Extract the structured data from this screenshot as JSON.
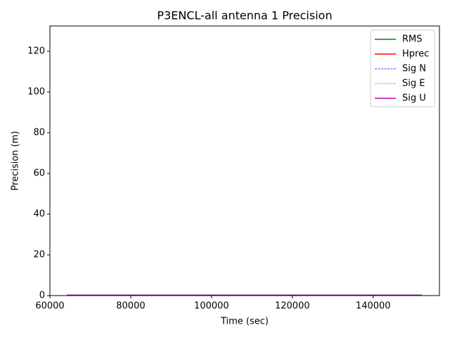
{
  "chart_data": {
    "type": "line",
    "title": "P3ENCL-all antenna 1 Precision",
    "x_label": "Time (sec)",
    "y_label": "Precision (m)",
    "x": [
      64200,
      152000
    ],
    "series": [
      {
        "name": "RMS",
        "color": "#008000",
        "linestyle": "solid",
        "values": [
          0.2,
          0.2
        ]
      },
      {
        "name": "Hprec",
        "color": "#ff0000",
        "linestyle": "solid",
        "values": [
          0.1,
          0.1
        ]
      },
      {
        "name": "Sig N",
        "color": "#0000ff",
        "linestyle": "dashed",
        "values": [
          0.05,
          0.05
        ]
      },
      {
        "name": "Sig E",
        "color": "#00bfbf",
        "linestyle": "dashed",
        "values": [
          0.05,
          0.05
        ]
      },
      {
        "name": "Sig U",
        "color": "#bf00bf",
        "linestyle": "solid",
        "values": [
          0.2,
          0.2
        ]
      }
    ],
    "xlim": [
      60000,
      156400
    ],
    "ylim": [
      0,
      132.4
    ],
    "xticks": [
      60000,
      80000,
      100000,
      120000,
      140000
    ],
    "yticks": [
      0,
      20,
      40,
      60,
      80,
      100,
      120
    ],
    "legend": "upper right",
    "grid": false
  }
}
